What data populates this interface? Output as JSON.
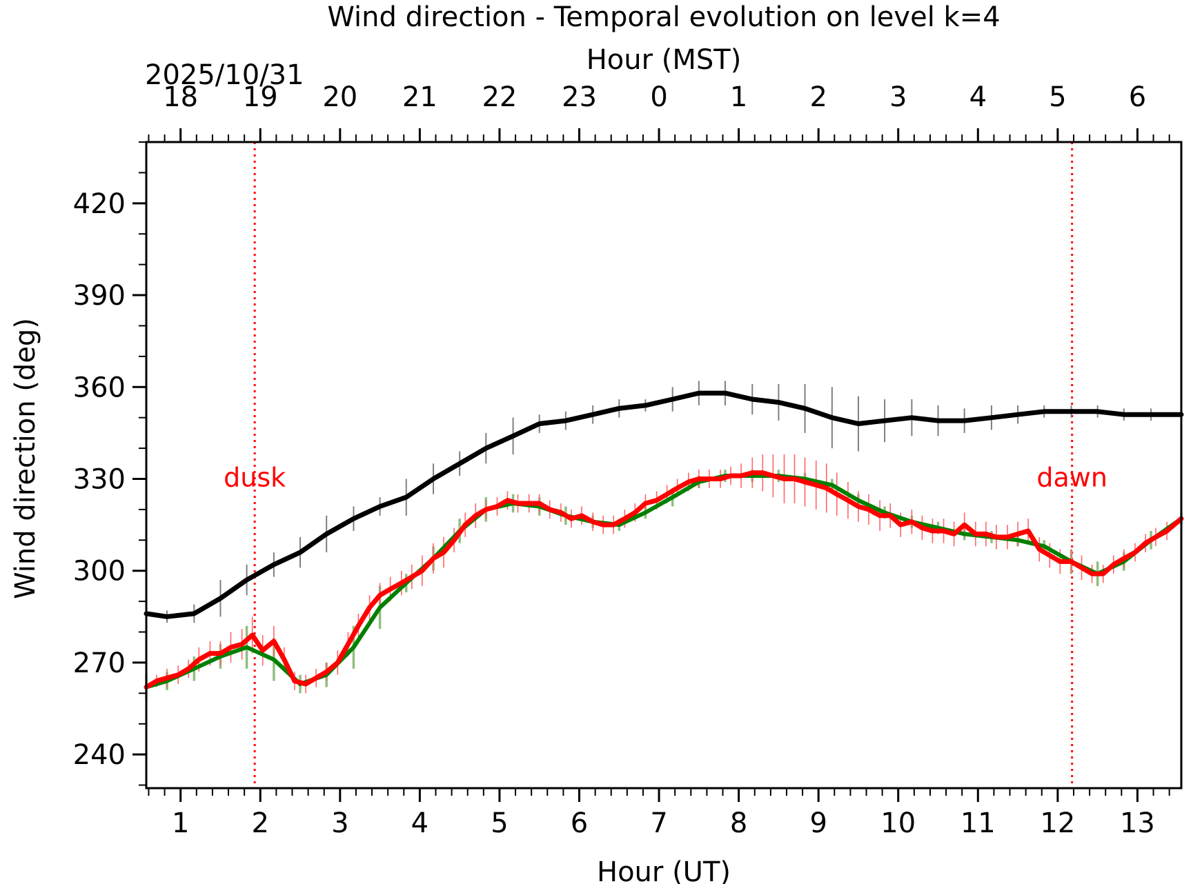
{
  "chart_data": {
    "type": "line",
    "title": "Wind direction - Temporal evolution on level k=4",
    "top_axis_label": "Hour (MST)",
    "date_label": "2025/10/31",
    "xlabel": "Hour (UT)",
    "ylabel": "Wind direction (deg)",
    "xlim": [
      0.57,
      13.55
    ],
    "ylim": [
      229,
      440
    ],
    "x_ticks": [
      "1",
      "2",
      "3",
      "4",
      "5",
      "6",
      "7",
      "8",
      "9",
      "10",
      "11",
      "12",
      "13"
    ],
    "y_ticks": [
      "240",
      "270",
      "300",
      "330",
      "360",
      "390",
      "420"
    ],
    "top_ticks": [
      "18",
      "19",
      "20",
      "21",
      "22",
      "23",
      "0",
      "1",
      "2",
      "3",
      "4",
      "5",
      "6"
    ],
    "top_tick_x": [
      1,
      2,
      3,
      4,
      5,
      6,
      7,
      8,
      9,
      10,
      11,
      12,
      13
    ],
    "grid": false,
    "legend": "none",
    "events": [
      {
        "label": "dusk",
        "x": 1.93
      },
      {
        "label": "dawn",
        "x": 12.18
      }
    ],
    "series": [
      {
        "color": "#000000",
        "x": [
          0.57,
          0.83,
          1.17,
          1.5,
          1.83,
          2.17,
          2.5,
          2.83,
          3.17,
          3.5,
          3.83,
          4.17,
          4.5,
          4.83,
          5.17,
          5.5,
          5.83,
          6.17,
          6.5,
          6.83,
          7.17,
          7.5,
          7.83,
          8.17,
          8.5,
          8.83,
          9.17,
          9.5,
          9.83,
          10.17,
          10.5,
          10.83,
          11.17,
          11.5,
          11.83,
          12.17,
          12.5,
          12.83,
          13.17,
          13.55
        ],
        "values": [
          286,
          285,
          286,
          291,
          297,
          302,
          306,
          312,
          317,
          321,
          324,
          330,
          335,
          340,
          344,
          348,
          349,
          351,
          353,
          354,
          356,
          358,
          358,
          356,
          355,
          353,
          350,
          348,
          349,
          350,
          349,
          349,
          350,
          351,
          352,
          352,
          352,
          351,
          351,
          351
        ],
        "error": [
          2,
          2,
          3,
          6,
          5,
          4,
          5,
          6,
          4,
          3,
          6,
          5,
          4,
          5,
          6,
          3,
          3,
          3,
          3,
          2,
          4,
          4,
          4,
          5,
          6,
          8,
          10,
          9,
          7,
          6,
          5,
          4,
          4,
          3,
          2,
          2,
          2,
          2,
          2,
          2
        ]
      },
      {
        "color": "#008000",
        "x": [
          0.57,
          0.83,
          1.17,
          1.5,
          1.83,
          2.17,
          2.5,
          2.83,
          3.17,
          3.5,
          3.83,
          4.17,
          4.5,
          4.83,
          5.17,
          5.5,
          5.83,
          6.17,
          6.5,
          6.83,
          7.17,
          7.5,
          7.83,
          8.17,
          8.5,
          8.83,
          9.17,
          9.5,
          9.83,
          10.17,
          10.5,
          10.83,
          11.17,
          11.5,
          11.83,
          12.17,
          12.5,
          12.83,
          13.17,
          13.55
        ],
        "values": [
          262,
          264,
          268,
          272,
          275,
          271,
          263,
          266,
          275,
          288,
          296,
          304,
          313,
          320,
          322,
          321,
          318,
          316,
          315,
          319,
          324,
          329,
          331,
          331,
          331,
          330,
          328,
          323,
          319,
          316,
          314,
          312,
          311,
          310,
          308,
          303,
          299,
          303,
          310,
          317
        ],
        "error": [
          4,
          3,
          4,
          4,
          7,
          7,
          3,
          4,
          7,
          7,
          3,
          4,
          4,
          4,
          3,
          3,
          3,
          2,
          2,
          2,
          3,
          2,
          2,
          2,
          2,
          2,
          2,
          2,
          2,
          2,
          2,
          2,
          2,
          2,
          2,
          4,
          4,
          3,
          3,
          2
        ]
      },
      {
        "color": "#ff0000",
        "x": [
          0.57,
          0.7,
          0.83,
          0.97,
          1.1,
          1.23,
          1.37,
          1.5,
          1.63,
          1.77,
          1.9,
          2.03,
          2.17,
          2.3,
          2.43,
          2.57,
          2.7,
          2.83,
          2.97,
          3.1,
          3.23,
          3.37,
          3.5,
          3.63,
          3.77,
          3.9,
          4.03,
          4.17,
          4.3,
          4.43,
          4.57,
          4.7,
          4.83,
          4.97,
          5.1,
          5.23,
          5.37,
          5.5,
          5.63,
          5.77,
          5.9,
          6.03,
          6.17,
          6.3,
          6.43,
          6.57,
          6.7,
          6.83,
          6.97,
          7.1,
          7.23,
          7.37,
          7.5,
          7.63,
          7.77,
          7.9,
          8.03,
          8.17,
          8.3,
          8.43,
          8.57,
          8.7,
          8.83,
          8.97,
          9.1,
          9.23,
          9.37,
          9.5,
          9.63,
          9.77,
          9.9,
          10.03,
          10.17,
          10.3,
          10.43,
          10.57,
          10.7,
          10.83,
          10.97,
          11.1,
          11.23,
          11.37,
          11.5,
          11.63,
          11.77,
          11.9,
          12.03,
          12.17,
          12.3,
          12.43,
          12.57,
          12.7,
          12.83,
          12.97,
          13.1,
          13.23,
          13.37,
          13.55
        ],
        "values": [
          262,
          264,
          265,
          266,
          268,
          271,
          273,
          273,
          275,
          276,
          279,
          274,
          277,
          271,
          264,
          263,
          265,
          267,
          270,
          276,
          282,
          288,
          292,
          294,
          296,
          298,
          300,
          304,
          306,
          310,
          315,
          318,
          320,
          321,
          323,
          322,
          322,
          322,
          320,
          319,
          317,
          318,
          316,
          315,
          315,
          317,
          319,
          322,
          323,
          325,
          327,
          329,
          330,
          330,
          330,
          331,
          331,
          332,
          332,
          331,
          330,
          330,
          329,
          328,
          327,
          325,
          323,
          321,
          320,
          318,
          318,
          315,
          316,
          314,
          313,
          313,
          312,
          315,
          312,
          312,
          311,
          311,
          312,
          313,
          307,
          305,
          303,
          303,
          301,
          299,
          299,
          302,
          304,
          306,
          309,
          311,
          313,
          317
        ],
        "error": [
          2,
          2,
          3,
          3,
          3,
          4,
          4,
          4,
          5,
          5,
          6,
          5,
          5,
          4,
          3,
          3,
          3,
          3,
          4,
          4,
          4,
          4,
          4,
          4,
          4,
          4,
          5,
          5,
          5,
          4,
          4,
          4,
          3,
          3,
          3,
          3,
          3,
          3,
          3,
          3,
          3,
          3,
          3,
          3,
          3,
          3,
          3,
          3,
          3,
          3,
          3,
          3,
          3,
          3,
          3,
          3,
          4,
          5,
          6,
          7,
          8,
          8,
          8,
          8,
          8,
          7,
          6,
          5,
          5,
          5,
          4,
          4,
          4,
          4,
          4,
          4,
          4,
          4,
          4,
          4,
          4,
          4,
          4,
          4,
          4,
          4,
          4,
          4,
          4,
          3,
          3,
          3,
          3,
          3,
          3,
          3,
          3,
          3
        ]
      }
    ]
  }
}
